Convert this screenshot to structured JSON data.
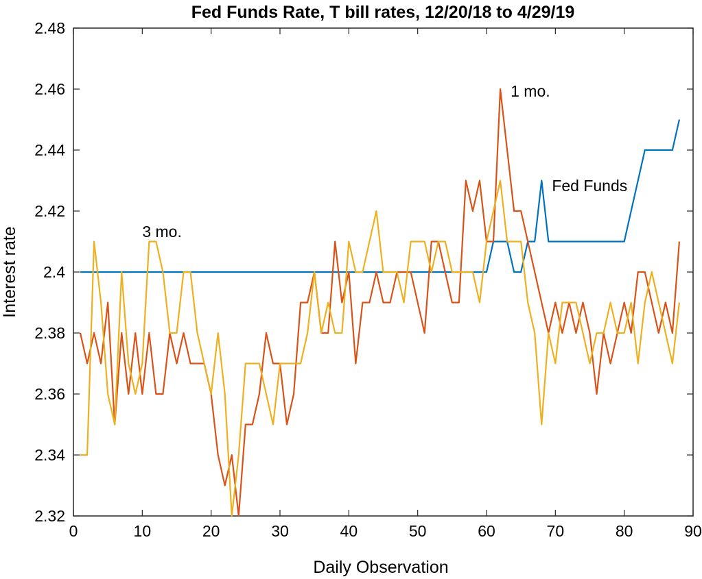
{
  "chart_data": {
    "type": "line",
    "title": "Fed Funds Rate, T bill rates, 12/20/18 to 4/29/19",
    "xlabel": "Daily Observation",
    "ylabel": "Interest rate",
    "xlim": [
      0,
      90
    ],
    "ylim": [
      2.32,
      2.48
    ],
    "xticks": [
      0,
      10,
      20,
      30,
      40,
      50,
      60,
      70,
      80,
      90
    ],
    "yticks": [
      2.32,
      2.34,
      2.36,
      2.38,
      2.4,
      2.42,
      2.44,
      2.46,
      2.48
    ],
    "xtick_labels": [
      "0",
      "10",
      "20",
      "30",
      "40",
      "50",
      "60",
      "70",
      "80",
      "90"
    ],
    "ytick_labels": [
      "2.32",
      "2.34",
      "2.36",
      "2.38",
      "2.4",
      "2.42",
      "2.44",
      "2.46",
      "2.48"
    ],
    "grid": false,
    "x": [
      1,
      2,
      3,
      4,
      5,
      6,
      7,
      8,
      9,
      10,
      11,
      12,
      13,
      14,
      15,
      16,
      17,
      18,
      19,
      20,
      21,
      22,
      23,
      24,
      25,
      26,
      27,
      28,
      29,
      30,
      31,
      32,
      33,
      34,
      35,
      36,
      37,
      38,
      39,
      40,
      41,
      42,
      43,
      44,
      45,
      46,
      47,
      48,
      49,
      50,
      51,
      52,
      53,
      54,
      55,
      56,
      57,
      58,
      59,
      60,
      61,
      62,
      63,
      64,
      65,
      66,
      67,
      68,
      69,
      70,
      71,
      72,
      73,
      74,
      75,
      76,
      77,
      78,
      79,
      80,
      81,
      82,
      83,
      84,
      85,
      86,
      87,
      88
    ],
    "series": [
      {
        "name": "Fed Funds",
        "color": "#0072bd",
        "values": [
          2.4,
          2.4,
          2.4,
          2.4,
          2.4,
          2.4,
          2.4,
          2.4,
          2.4,
          2.4,
          2.4,
          2.4,
          2.4,
          2.4,
          2.4,
          2.4,
          2.4,
          2.4,
          2.4,
          2.4,
          2.4,
          2.4,
          2.4,
          2.4,
          2.4,
          2.4,
          2.4,
          2.4,
          2.4,
          2.4,
          2.4,
          2.4,
          2.4,
          2.4,
          2.4,
          2.4,
          2.4,
          2.4,
          2.4,
          2.4,
          2.4,
          2.4,
          2.4,
          2.4,
          2.4,
          2.4,
          2.4,
          2.4,
          2.4,
          2.4,
          2.4,
          2.4,
          2.4,
          2.4,
          2.4,
          2.4,
          2.4,
          2.4,
          2.4,
          2.4,
          2.41,
          2.41,
          2.41,
          2.4,
          2.4,
          2.41,
          2.41,
          2.43,
          2.41,
          2.41,
          2.41,
          2.41,
          2.41,
          2.41,
          2.41,
          2.41,
          2.41,
          2.41,
          2.41,
          2.41,
          2.42,
          2.43,
          2.44,
          2.44,
          2.44,
          2.44,
          2.44,
          2.45
        ]
      },
      {
        "name": "1 mo.",
        "color": "#d95319",
        "values": [
          2.38,
          2.37,
          2.38,
          2.37,
          2.39,
          2.35,
          2.38,
          2.36,
          2.38,
          2.36,
          2.38,
          2.36,
          2.36,
          2.38,
          2.37,
          2.38,
          2.37,
          2.37,
          2.37,
          2.36,
          2.34,
          2.33,
          2.34,
          2.32,
          2.35,
          2.35,
          2.36,
          2.38,
          2.37,
          2.37,
          2.35,
          2.36,
          2.39,
          2.39,
          2.4,
          2.38,
          2.38,
          2.41,
          2.39,
          2.4,
          2.37,
          2.39,
          2.39,
          2.4,
          2.39,
          2.39,
          2.4,
          2.4,
          2.4,
          2.39,
          2.38,
          2.41,
          2.41,
          2.4,
          2.39,
          2.39,
          2.43,
          2.42,
          2.43,
          2.41,
          2.41,
          2.46,
          2.44,
          2.42,
          2.42,
          2.41,
          2.4,
          2.39,
          2.38,
          2.39,
          2.38,
          2.39,
          2.38,
          2.39,
          2.38,
          2.36,
          2.38,
          2.37,
          2.38,
          2.39,
          2.38,
          2.4,
          2.4,
          2.39,
          2.38,
          2.39,
          2.38,
          2.41
        ]
      },
      {
        "name": "3 mo.",
        "color": "#edb120",
        "values": [
          2.34,
          2.34,
          2.41,
          2.39,
          2.36,
          2.35,
          2.4,
          2.37,
          2.36,
          2.37,
          2.41,
          2.41,
          2.4,
          2.38,
          2.38,
          2.4,
          2.4,
          2.38,
          2.37,
          2.36,
          2.38,
          2.36,
          2.32,
          2.34,
          2.37,
          2.37,
          2.37,
          2.36,
          2.35,
          2.37,
          2.37,
          2.37,
          2.37,
          2.38,
          2.4,
          2.38,
          2.39,
          2.38,
          2.38,
          2.41,
          2.4,
          2.4,
          2.41,
          2.42,
          2.4,
          2.4,
          2.4,
          2.39,
          2.41,
          2.41,
          2.41,
          2.4,
          2.41,
          2.41,
          2.4,
          2.4,
          2.4,
          2.4,
          2.39,
          2.41,
          2.42,
          2.43,
          2.41,
          2.41,
          2.41,
          2.39,
          2.38,
          2.35,
          2.38,
          2.37,
          2.39,
          2.39,
          2.39,
          2.38,
          2.37,
          2.38,
          2.38,
          2.39,
          2.38,
          2.38,
          2.39,
          2.37,
          2.39,
          2.4,
          2.39,
          2.38,
          2.37,
          2.39
        ]
      }
    ],
    "annotations": [
      {
        "text": "1 mo.",
        "x": 63.5,
        "y": 2.4575
      },
      {
        "text": "Fed Funds",
        "x": 69.5,
        "y": 2.4265
      },
      {
        "text": "3 mo.",
        "x": 10.0,
        "y": 2.4115
      }
    ]
  }
}
